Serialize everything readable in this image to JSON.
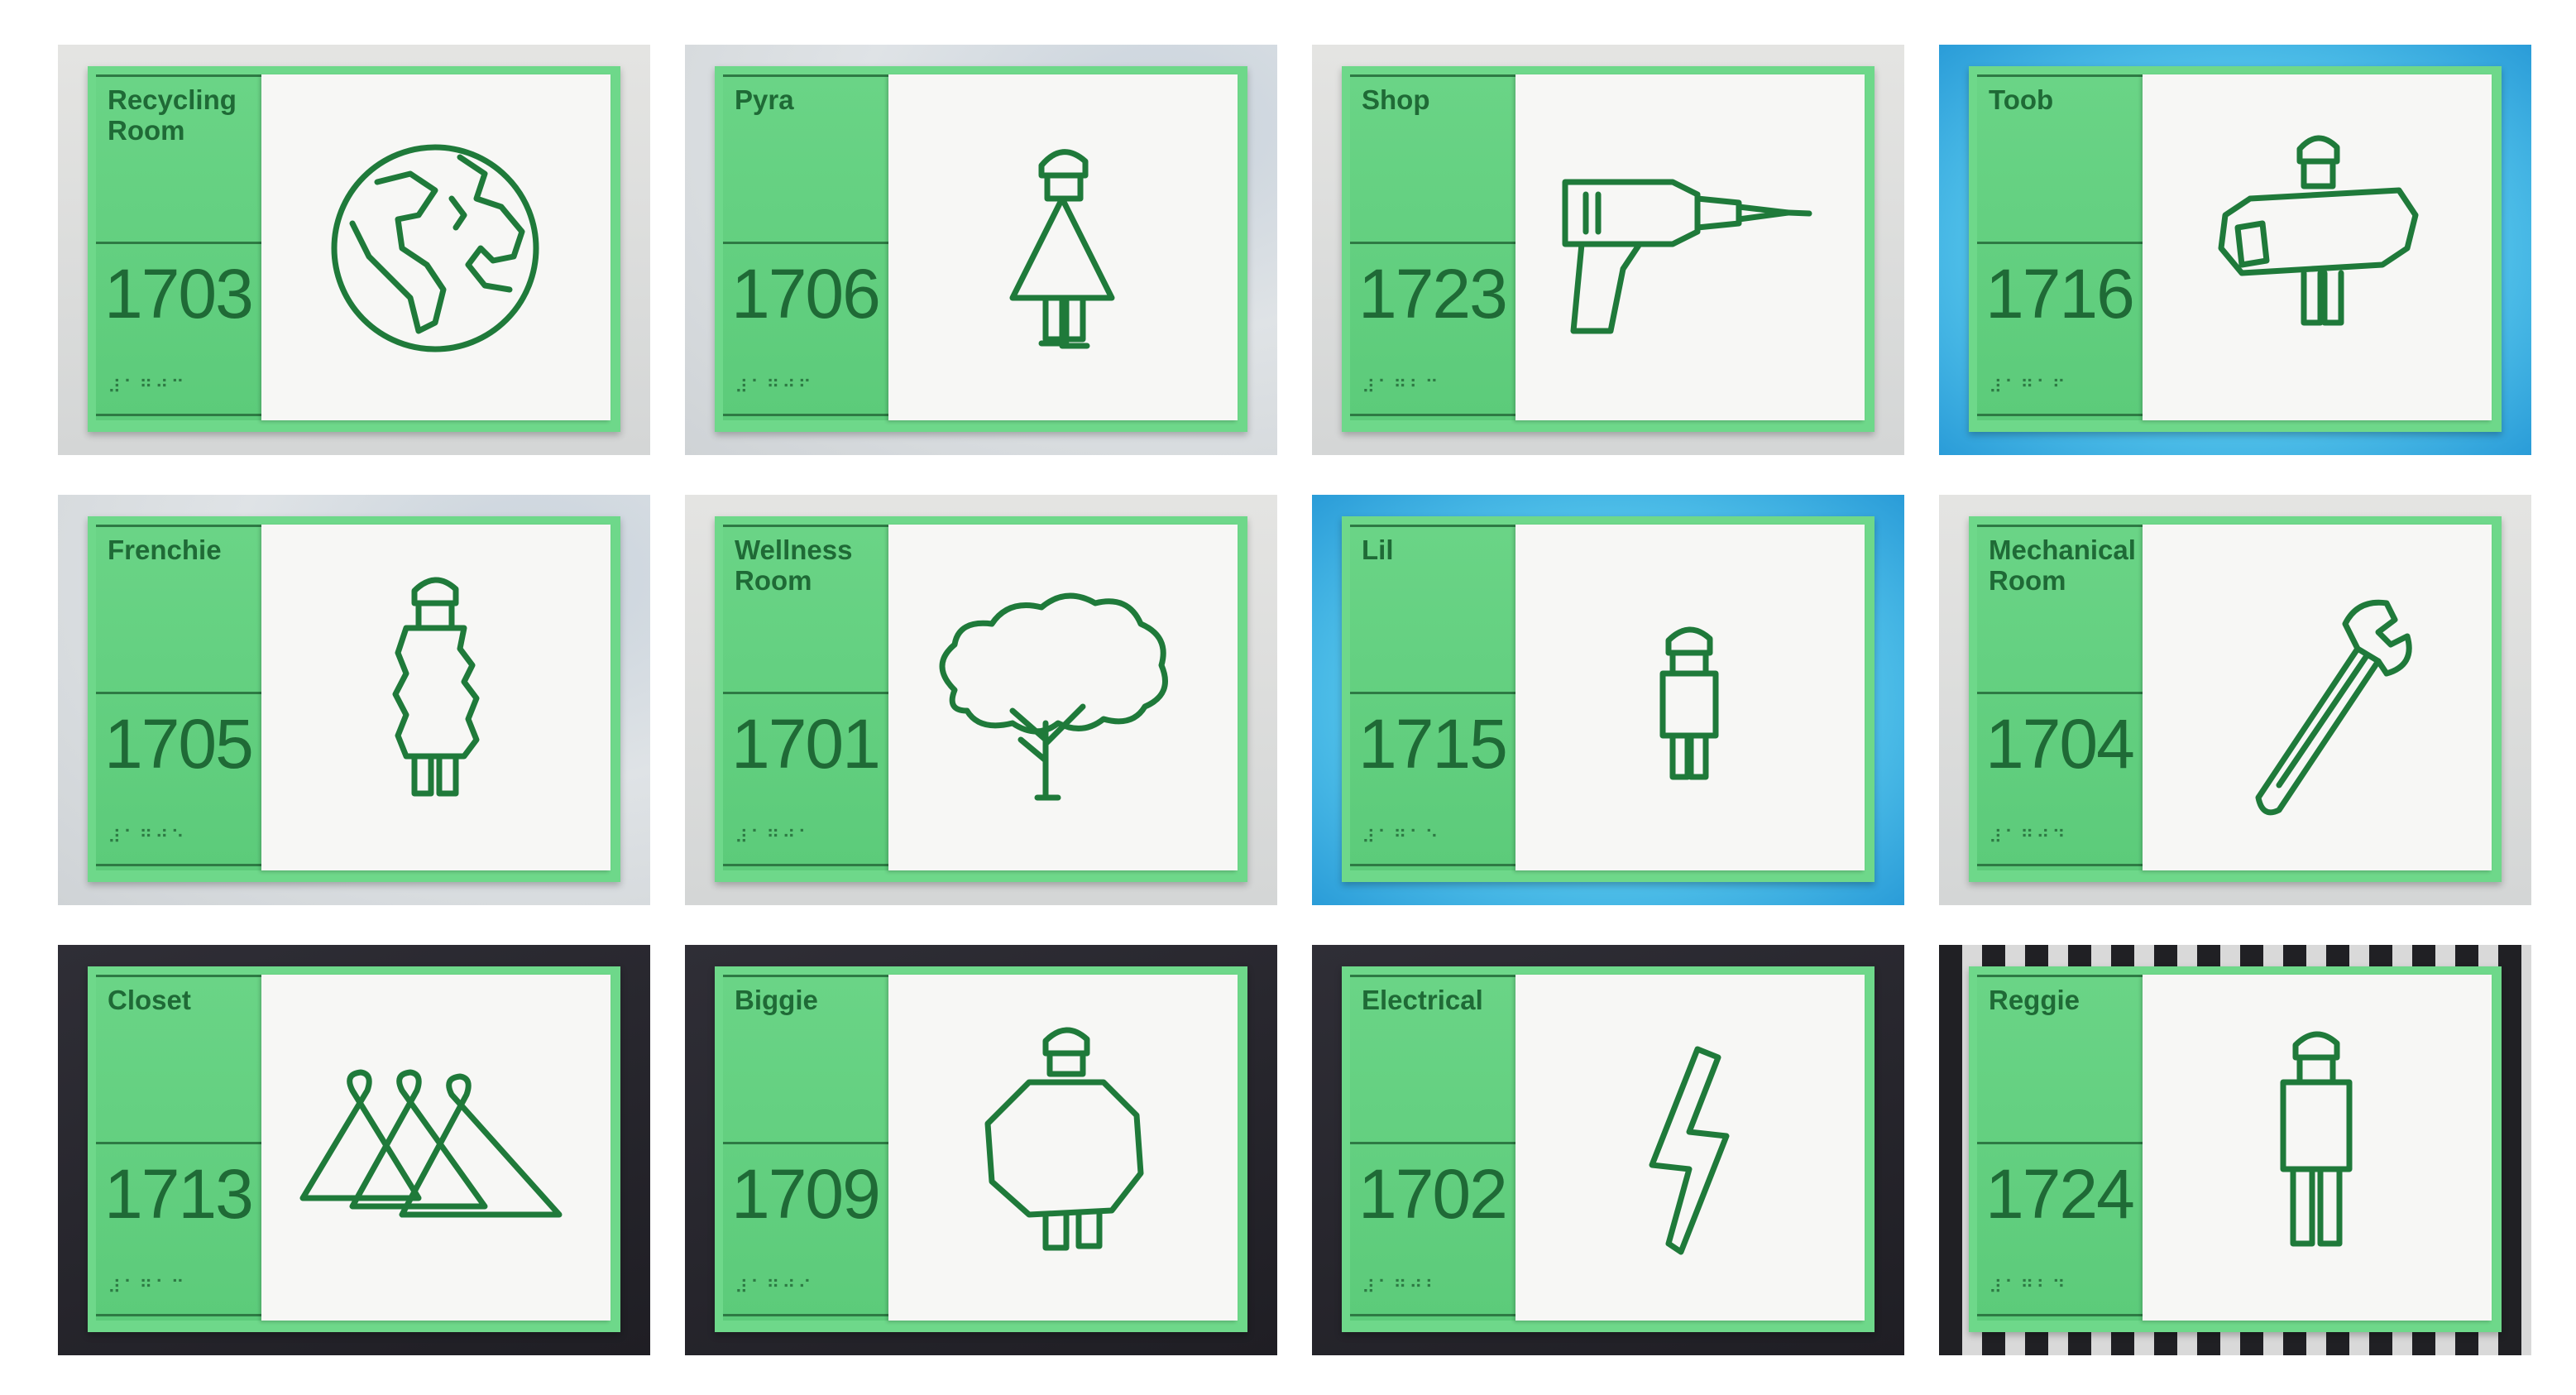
{
  "signs": [
    {
      "name": "Recycling\nRoom",
      "number": "1703",
      "braille": "⠼⠁⠛⠚⠉",
      "icon": "globe-icon"
    },
    {
      "name": "Pyra",
      "number": "1706",
      "braille": "⠼⠁⠛⠚⠋",
      "icon": "pyra-figure-icon"
    },
    {
      "name": "Shop",
      "number": "1723",
      "braille": "⠼⠁⠛⠃⠉",
      "icon": "drill-icon"
    },
    {
      "name": "Toob",
      "number": "1716",
      "braille": "⠼⠁⠛⠁⠋",
      "icon": "toob-figure-icon"
    },
    {
      "name": "Frenchie",
      "number": "1705",
      "braille": "⠼⠁⠛⠚⠑",
      "icon": "frenchie-figure-icon"
    },
    {
      "name": "Wellness\nRoom",
      "number": "1701",
      "braille": "⠼⠁⠛⠚⠁",
      "icon": "tree-icon"
    },
    {
      "name": "Lil",
      "number": "1715",
      "braille": "⠼⠁⠛⠁⠑",
      "icon": "lil-figure-icon"
    },
    {
      "name": "Mechanical\nRoom",
      "number": "1704",
      "braille": "⠼⠁⠛⠚⠙",
      "icon": "wrench-icon"
    },
    {
      "name": "Closet",
      "number": "1713",
      "braille": "⠼⠁⠛⠁⠉",
      "icon": "hangers-icon"
    },
    {
      "name": "Biggie",
      "number": "1709",
      "braille": "⠼⠁⠛⠚⠊",
      "icon": "biggie-figure-icon"
    },
    {
      "name": "Electrical",
      "number": "1702",
      "braille": "⠼⠁⠛⠚⠃",
      "icon": "lightning-bolt-icon"
    },
    {
      "name": "Reggie",
      "number": "1724",
      "braille": "⠼⠁⠛⠃⠙",
      "icon": "reggie-figure-icon"
    }
  ]
}
